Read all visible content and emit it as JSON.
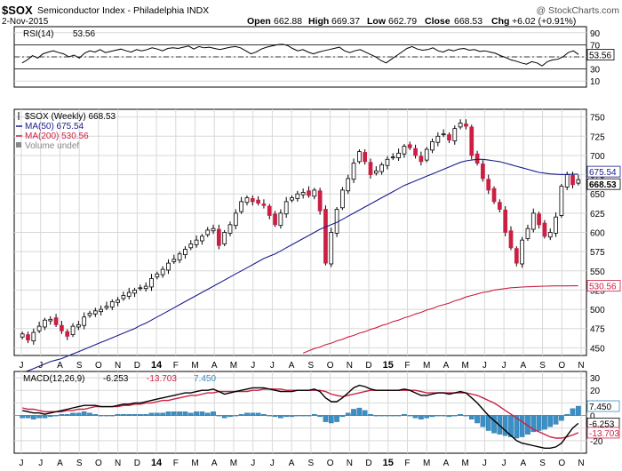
{
  "header": {
    "symbol": "$SOX",
    "name": "Semiconductor Index - Philadelphia INDX",
    "watermark": "@ StockCharts.com",
    "date": "2-Nov-2015",
    "ohlc": {
      "open_label": "Open",
      "open": "662.88",
      "high_label": "High",
      "high": "669.37",
      "low_label": "Low",
      "low": "662.79",
      "close_label": "Close",
      "close": "668.53",
      "chg_label": "Chg",
      "chg": "+6.02 (+0.91%)"
    }
  },
  "colors": {
    "up": "#ffffff",
    "down": "#cc1f43",
    "ma50": "#1b1b8f",
    "ma200": "#cc1f43",
    "macd": "#000000",
    "signal": "#cc1f43",
    "hist": "#3a8fc6",
    "rsi": "#000000",
    "rsi_fill": "#3f8a3f",
    "grid": "#d8d8d8"
  },
  "chart_data": [
    {
      "type": "line",
      "panel": "rsi",
      "title": "RSI(14) 53.56",
      "legend_label": "RSI(14)",
      "legend_value": "53.56",
      "ylim": [
        0,
        100
      ],
      "yticks": [
        90,
        70,
        50,
        30,
        10
      ],
      "reference_lines": [
        70,
        50,
        30
      ],
      "current_label": "53.56",
      "series": [
        {
          "name": "RSI(14)",
          "values": [
            40,
            45,
            52,
            48,
            55,
            58,
            60,
            57,
            55,
            50,
            53,
            48,
            56,
            60,
            58,
            62,
            57,
            59,
            61,
            63,
            60,
            58,
            62,
            60,
            62,
            65,
            63,
            60,
            64,
            65,
            64,
            66,
            68,
            63,
            67,
            65,
            66,
            64,
            62,
            64,
            66,
            67,
            65,
            60,
            55,
            58,
            63,
            66,
            68,
            70,
            71,
            69,
            64,
            60,
            62,
            58,
            55,
            58,
            60,
            62,
            64,
            66,
            60,
            57,
            60,
            62,
            58,
            54,
            50,
            44,
            40,
            46,
            52,
            58,
            64,
            67,
            63,
            61,
            62,
            65,
            60,
            58,
            62,
            60,
            63,
            64,
            61,
            62,
            59,
            60,
            58,
            56,
            52,
            49,
            45,
            43,
            40,
            38,
            42,
            40,
            35,
            42,
            45,
            46,
            50,
            57,
            60,
            54
          ]
        }
      ]
    },
    {
      "type": "candlestick",
      "panel": "price",
      "title": "$SOX (Weekly) 668.53",
      "ylim": [
        440,
        760
      ],
      "yticks": [
        750,
        725,
        700,
        675,
        650,
        625,
        600,
        575,
        550,
        525,
        500,
        475,
        450
      ],
      "x_labels": [
        "J",
        "J",
        "A",
        "S",
        "O",
        "N",
        "D",
        "14",
        "F",
        "M",
        "A",
        "M",
        "J",
        "J",
        "A",
        "S",
        "O",
        "N",
        "D",
        "15",
        "F",
        "M",
        "A",
        "M",
        "J",
        "J",
        "A",
        "S",
        "O",
        "N"
      ],
      "legend": [
        {
          "key": "price",
          "label": "$SOX (Weekly) 668.53"
        },
        {
          "key": "ma50",
          "label": "MA(50) 675.54"
        },
        {
          "key": "ma200",
          "label": "MA(200) 530.56"
        },
        {
          "key": "volume",
          "label": "Volume undef"
        }
      ],
      "last_values": {
        "price": "668.53",
        "ma50": "675.54",
        "ma200": "530.56"
      },
      "close": [
        468,
        460,
        470,
        478,
        486,
        487,
        480,
        472,
        465,
        478,
        480,
        490,
        495,
        498,
        500,
        504,
        510,
        512,
        518,
        522,
        525,
        528,
        530,
        540,
        546,
        552,
        560,
        565,
        572,
        578,
        585,
        590,
        595,
        603,
        605,
        583,
        600,
        610,
        625,
        640,
        645,
        640,
        638,
        635,
        622,
        610,
        625,
        640,
        645,
        650,
        652,
        648,
        655,
        628,
        560,
        600,
        630,
        655,
        670,
        690,
        705,
        692,
        675,
        680,
        688,
        695,
        698,
        703,
        712,
        710,
        700,
        692,
        708,
        718,
        725,
        728,
        720,
        735,
        742,
        738,
        700,
        690,
        670,
        655,
        640,
        630,
        600,
        580,
        560,
        590,
        605,
        625,
        610,
        595,
        600,
        620,
        660,
        675,
        662,
        668.53
      ],
      "ma50": [
        418,
        420,
        423,
        426,
        429,
        432,
        434,
        436,
        439,
        442,
        445,
        448,
        451,
        454,
        457,
        460,
        463,
        466,
        469,
        472,
        475,
        479,
        482,
        486,
        490,
        494,
        498,
        502,
        506,
        510,
        514,
        518,
        522,
        526,
        530,
        534,
        538,
        542,
        546,
        550,
        554,
        558,
        562,
        566,
        569,
        572,
        576,
        580,
        584,
        588,
        592,
        596,
        600,
        604,
        607,
        610,
        613,
        617,
        621,
        625,
        629,
        633,
        637,
        641,
        645,
        649,
        653,
        657,
        661,
        664,
        667,
        670,
        673,
        676,
        679,
        682,
        685,
        688,
        691,
        693,
        694,
        695,
        695,
        694,
        693,
        692,
        690,
        688,
        686,
        684,
        682,
        680,
        678,
        677,
        676,
        675.5,
        675.2,
        675.3,
        675.5,
        675.54
      ],
      "ma200": [
        null,
        null,
        null,
        null,
        null,
        null,
        null,
        null,
        null,
        null,
        null,
        null,
        null,
        null,
        null,
        null,
        null,
        null,
        null,
        null,
        null,
        null,
        null,
        null,
        null,
        null,
        null,
        null,
        null,
        null,
        null,
        null,
        null,
        null,
        null,
        null,
        null,
        null,
        null,
        null,
        null,
        null,
        null,
        null,
        null,
        null,
        null,
        null,
        null,
        null,
        443,
        446,
        449,
        451,
        454,
        456,
        459,
        461,
        464,
        466,
        469,
        471,
        474,
        476,
        479,
        481,
        484,
        486,
        489,
        491,
        494,
        496,
        499,
        501,
        504,
        506,
        508,
        511,
        513,
        516,
        518,
        520,
        522,
        523,
        525,
        526,
        527,
        528,
        528.5,
        529,
        529.3,
        529.6,
        529.9,
        530.1,
        530.3,
        530.4,
        530.45,
        530.5,
        530.52,
        530.56
      ]
    },
    {
      "type": "line",
      "panel": "macd",
      "title": "MACD(12,26,9) -6.253, -13.703, 7.450",
      "legend": {
        "name": "MACD(12,26,9)",
        "macd": "-6.253",
        "signal": "-13.703",
        "hist": "7.450"
      },
      "ylim": [
        -30,
        35
      ],
      "yticks": [
        30,
        20,
        10,
        0,
        -10,
        -20
      ],
      "x_labels": [
        "J",
        "J",
        "A",
        "S",
        "O",
        "N",
        "D",
        "14",
        "F",
        "M",
        "A",
        "M",
        "J",
        "J",
        "A",
        "S",
        "O",
        "N",
        "D",
        "15",
        "F",
        "M",
        "A",
        "M",
        "J",
        "J",
        "A",
        "S",
        "O",
        "N"
      ],
      "series": [
        {
          "name": "MACD",
          "values": [
            4,
            3,
            2,
            2,
            1,
            2,
            3,
            4,
            5,
            6,
            7,
            8,
            8,
            8,
            7,
            7,
            7,
            8,
            9,
            9,
            10,
            10,
            11,
            12,
            13,
            14,
            15,
            16,
            17,
            18,
            18,
            19,
            20,
            20,
            21,
            19,
            17,
            18,
            19,
            20,
            21,
            22,
            22,
            22,
            21,
            20,
            19,
            19,
            19,
            20,
            20,
            20,
            21,
            19,
            14,
            11,
            11,
            14,
            18,
            22,
            24,
            23,
            21,
            20,
            20,
            20,
            20,
            20,
            21,
            20,
            18,
            16,
            16,
            17,
            18,
            18,
            17,
            18,
            19,
            18,
            14,
            10,
            5,
            0,
            -4,
            -8,
            -12,
            -16,
            -20,
            -22,
            -23,
            -24,
            -25,
            -26,
            -26,
            -25,
            -22,
            -16,
            -10,
            -6.253
          ]
        },
        {
          "name": "Signal",
          "values": [
            6,
            5,
            5,
            4,
            3,
            3,
            3,
            3,
            4,
            4,
            5,
            5,
            6,
            7,
            7,
            7,
            7,
            7,
            8,
            8,
            9,
            9,
            10,
            10,
            11,
            12,
            12,
            13,
            14,
            15,
            16,
            16,
            17,
            18,
            18,
            19,
            19,
            19,
            19,
            19,
            19,
            20,
            20,
            21,
            21,
            21,
            21,
            20,
            20,
            20,
            20,
            20,
            20,
            20,
            19,
            17,
            16,
            15,
            16,
            17,
            18,
            19,
            20,
            20,
            20,
            20,
            20,
            20,
            20,
            20,
            20,
            19,
            18,
            18,
            18,
            18,
            18,
            18,
            18,
            18,
            17,
            16,
            14,
            12,
            10,
            7,
            4,
            1,
            -2,
            -5,
            -8,
            -11,
            -13,
            -15,
            -17,
            -18,
            -18,
            -17,
            -15.5,
            -13.703
          ]
        },
        {
          "name": "Histogram",
          "values": [
            -2,
            -2,
            -3,
            -2,
            -2,
            -1,
            0,
            1,
            1,
            2,
            2,
            3,
            2,
            1,
            0,
            0,
            0,
            1,
            1,
            1,
            1,
            1,
            1,
            2,
            2,
            2,
            3,
            3,
            3,
            3,
            2,
            3,
            3,
            2,
            3,
            0,
            -2,
            -1,
            0,
            1,
            2,
            2,
            2,
            1,
            0,
            -1,
            -2,
            -1,
            -1,
            0,
            0,
            0,
            1,
            -1,
            -5,
            -6,
            -5,
            -1,
            2,
            5,
            6,
            4,
            1,
            0,
            0,
            0,
            0,
            0,
            1,
            0,
            -2,
            -3,
            -2,
            -1,
            0,
            0,
            -1,
            0,
            1,
            0,
            -3,
            -6,
            -9,
            -12,
            -14,
            -15,
            -16,
            -17,
            -18,
            -17,
            -15,
            -13,
            -12,
            -11,
            -9,
            -7,
            -4,
            1,
            5.5,
            7.45
          ]
        }
      ],
      "current_labels": {
        "hist": "7.450",
        "macd": "-6.253",
        "signal": "-13.703"
      }
    }
  ]
}
